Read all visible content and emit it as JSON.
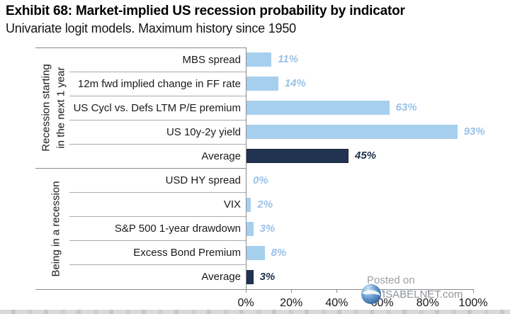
{
  "title": "Exhibit 68: Market-implied US recession probability by indicator",
  "subtitle": "Univariate logit models. Maximum history since 1950",
  "watermark": {
    "posted_on": "Posted on",
    "site": "ISABELNET.com",
    "globe_icon": "globe-icon"
  },
  "colors": {
    "light_bar": "#A6CFEE",
    "dark_bar": "#213350",
    "dark_bar_border": "#1a2a45",
    "light_value_label": "#9AC2E8",
    "dark_value_label": "#213350",
    "axis_line": "#8b8b8b",
    "row_divider": "#ababab",
    "text": "#1a1a1a",
    "watermark_grey": "#9aa0a5",
    "globe_blue": "#4a86c8"
  },
  "chart_data": {
    "type": "bar",
    "orientation": "horizontal",
    "title": "Exhibit 68: Market-implied US recession probability by indicator",
    "subtitle": "Univariate logit models. Maximum history since 1950",
    "xlabel": "",
    "ylabel": "",
    "xlim": [
      0,
      100
    ],
    "x_ticks": [
      "0%",
      "20%",
      "40%",
      "60%",
      "80%",
      "100%"
    ],
    "grid": false,
    "legend": false,
    "groups": [
      {
        "label": "Recession starting\nin the next 1 year",
        "rows": [
          {
            "category": "MBS spread",
            "value": 11,
            "label": "11%",
            "emphasis": false
          },
          {
            "category": "12m fwd implied change in FF rate",
            "value": 14,
            "label": "14%",
            "emphasis": false
          },
          {
            "category": "US Cycl vs. Defs LTM P/E premium",
            "value": 63,
            "label": "63%",
            "emphasis": false
          },
          {
            "category": "US 10y-2y yield",
            "value": 93,
            "label": "93%",
            "emphasis": false
          },
          {
            "category": "Average",
            "value": 45,
            "label": "45%",
            "emphasis": true
          }
        ]
      },
      {
        "label": "Being in a recession",
        "rows": [
          {
            "category": "USD HY spread",
            "value": 0,
            "label": "0%",
            "emphasis": false
          },
          {
            "category": "VIX",
            "value": 2,
            "label": "2%",
            "emphasis": false
          },
          {
            "category": "S&P 500 1-year drawdown",
            "value": 3,
            "label": "3%",
            "emphasis": false
          },
          {
            "category": "Excess Bond Premium",
            "value": 8,
            "label": "8%",
            "emphasis": false
          },
          {
            "category": "Average",
            "value": 3,
            "label": "3%",
            "emphasis": true
          }
        ]
      }
    ]
  }
}
